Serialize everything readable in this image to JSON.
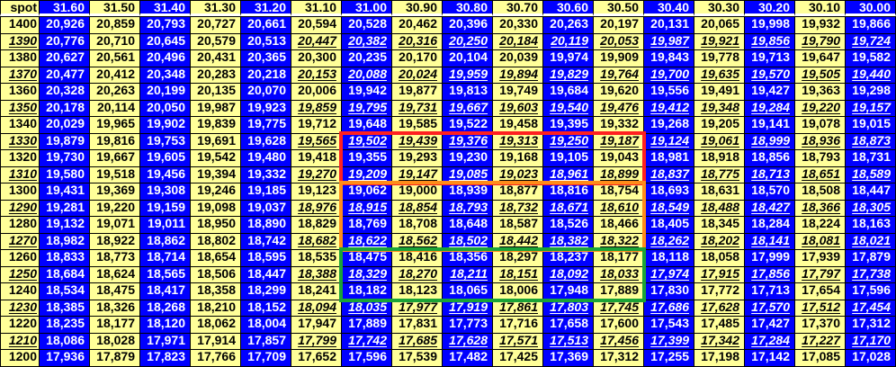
{
  "header": {
    "spot_label": "spot",
    "columns": [
      "31.60",
      "31.50",
      "31.40",
      "31.30",
      "31.20",
      "31.10",
      "31.00",
      "30.90",
      "30.80",
      "30.70",
      "30.60",
      "30.50",
      "30.40",
      "30.30",
      "30.20",
      "30.10",
      "30.00"
    ]
  },
  "colors": {
    "blue_column": "#0000ff",
    "yellow_column": "#ffff99",
    "highlight_red": "#ff2020",
    "highlight_orange": "#ff8c1a",
    "highlight_green": "#1aa337"
  },
  "highlights": [
    {
      "color": "red",
      "rows": [
        "1330",
        "1310"
      ],
      "columns": [
        "31.00",
        "30.50"
      ]
    },
    {
      "color": "orange",
      "rows": [
        "1300",
        "1270"
      ],
      "columns": [
        "31.00",
        "30.50"
      ]
    },
    {
      "color": "green",
      "rows": [
        "1260",
        "1240"
      ],
      "columns": [
        "31.00",
        "30.50"
      ]
    }
  ],
  "rows": [
    {
      "spot": "1400",
      "values": [
        "20,926",
        "20,859",
        "20,793",
        "20,727",
        "20,661",
        "20,594",
        "20,528",
        "20,462",
        "20,396",
        "20,330",
        "20,263",
        "20,197",
        "20,131",
        "20,065",
        "19,998",
        "19,932",
        "19,866"
      ]
    },
    {
      "spot": "1390",
      "values": [
        "20,776",
        "20,710",
        "20,645",
        "20,579",
        "20,513",
        "20,447",
        "20,382",
        "20,316",
        "20,250",
        "20,184",
        "20,119",
        "20,053",
        "19,987",
        "19,921",
        "19,856",
        "19,790",
        "19,724"
      ]
    },
    {
      "spot": "1380",
      "values": [
        "20,627",
        "20,561",
        "20,496",
        "20,431",
        "20,365",
        "20,300",
        "20,235",
        "20,170",
        "20,104",
        "20,039",
        "19,974",
        "19,909",
        "19,843",
        "19,778",
        "19,713",
        "19,647",
        "19,582"
      ]
    },
    {
      "spot": "1370",
      "values": [
        "20,477",
        "20,412",
        "20,348",
        "20,283",
        "20,218",
        "20,153",
        "20,088",
        "20,024",
        "19,959",
        "19,894",
        "19,829",
        "19,764",
        "19,700",
        "19,635",
        "19,570",
        "19,505",
        "19,440"
      ]
    },
    {
      "spot": "1360",
      "values": [
        "20,328",
        "20,263",
        "20,199",
        "20,135",
        "20,070",
        "20,006",
        "19,942",
        "19,877",
        "19,813",
        "19,749",
        "19,684",
        "19,620",
        "19,556",
        "19,491",
        "19,427",
        "19,363",
        "19,298"
      ]
    },
    {
      "spot": "1350",
      "values": [
        "20,178",
        "20,114",
        "20,050",
        "19,987",
        "19,923",
        "19,859",
        "19,795",
        "19,731",
        "19,667",
        "19,603",
        "19,540",
        "19,476",
        "19,412",
        "19,348",
        "19,284",
        "19,220",
        "19,157"
      ]
    },
    {
      "spot": "1340",
      "values": [
        "20,029",
        "19,965",
        "19,902",
        "19,839",
        "19,775",
        "19,712",
        "19,648",
        "19,585",
        "19,522",
        "19,458",
        "19,395",
        "19,332",
        "19,268",
        "19,205",
        "19,141",
        "19,078",
        "19,015"
      ]
    },
    {
      "spot": "1330",
      "values": [
        "19,879",
        "19,816",
        "19,753",
        "19,691",
        "19,628",
        "19,565",
        "19,502",
        "19,439",
        "19,376",
        "19,313",
        "19,250",
        "19,187",
        "19,124",
        "19,061",
        "18,999",
        "18,936",
        "18,873"
      ]
    },
    {
      "spot": "1320",
      "values": [
        "19,730",
        "19,667",
        "19,605",
        "19,542",
        "19,480",
        "19,418",
        "19,355",
        "19,293",
        "19,230",
        "19,168",
        "19,105",
        "19,043",
        "18,981",
        "18,918",
        "18,856",
        "18,793",
        "18,731"
      ]
    },
    {
      "spot": "1310",
      "values": [
        "19,580",
        "19,518",
        "19,456",
        "19,394",
        "19,332",
        "19,270",
        "19,209",
        "19,147",
        "19,085",
        "19,023",
        "18,961",
        "18,899",
        "18,837",
        "18,775",
        "18,713",
        "18,651",
        "18,589"
      ]
    },
    {
      "spot": "1300",
      "values": [
        "19,431",
        "19,369",
        "19,308",
        "19,246",
        "19,185",
        "19,123",
        "19,062",
        "19,000",
        "18,939",
        "18,877",
        "18,816",
        "18,754",
        "18,693",
        "18,631",
        "18,570",
        "18,508",
        "18,447"
      ]
    },
    {
      "spot": "1290",
      "values": [
        "19,281",
        "19,220",
        "19,159",
        "19,098",
        "19,037",
        "18,976",
        "18,915",
        "18,854",
        "18,793",
        "18,732",
        "18,671",
        "18,610",
        "18,549",
        "18,488",
        "18,427",
        "18,366",
        "18,305"
      ]
    },
    {
      "spot": "1280",
      "values": [
        "19,132",
        "19,071",
        "19,011",
        "18,950",
        "18,890",
        "18,829",
        "18,769",
        "18,708",
        "18,648",
        "18,587",
        "18,526",
        "18,466",
        "18,405",
        "18,345",
        "18,284",
        "18,224",
        "18,163"
      ]
    },
    {
      "spot": "1270",
      "values": [
        "18,982",
        "18,922",
        "18,862",
        "18,802",
        "18,742",
        "18,682",
        "18,622",
        "18,562",
        "18,502",
        "18,442",
        "18,382",
        "18,322",
        "18,262",
        "18,202",
        "18,141",
        "18,081",
        "18,021"
      ]
    },
    {
      "spot": "1260",
      "values": [
        "18,833",
        "18,773",
        "18,714",
        "18,654",
        "18,595",
        "18,535",
        "18,475",
        "18,416",
        "18,356",
        "18,297",
        "18,237",
        "18,177",
        "18,118",
        "18,058",
        "17,999",
        "17,939",
        "17,879"
      ]
    },
    {
      "spot": "1250",
      "values": [
        "18,684",
        "18,624",
        "18,565",
        "18,506",
        "18,447",
        "18,388",
        "18,329",
        "18,270",
        "18,211",
        "18,151",
        "18,092",
        "18,033",
        "17,974",
        "17,915",
        "17,856",
        "17,797",
        "17,738"
      ]
    },
    {
      "spot": "1240",
      "values": [
        "18,534",
        "18,475",
        "18,417",
        "18,358",
        "18,299",
        "18,241",
        "18,182",
        "18,123",
        "18,065",
        "18,006",
        "17,948",
        "17,889",
        "17,830",
        "17,772",
        "17,713",
        "17,654",
        "17,596"
      ]
    },
    {
      "spot": "1230",
      "values": [
        "18,385",
        "18,326",
        "18,268",
        "18,210",
        "18,152",
        "18,094",
        "18,035",
        "17,977",
        "17,919",
        "17,861",
        "17,803",
        "17,745",
        "17,686",
        "17,628",
        "17,570",
        "17,512",
        "17,454"
      ]
    },
    {
      "spot": "1220",
      "values": [
        "18,235",
        "18,177",
        "18,120",
        "18,062",
        "18,004",
        "17,947",
        "17,889",
        "17,831",
        "17,773",
        "17,716",
        "17,658",
        "17,600",
        "17,543",
        "17,485",
        "17,427",
        "17,370",
        "17,312"
      ]
    },
    {
      "spot": "1210",
      "values": [
        "18,086",
        "18,028",
        "17,971",
        "17,914",
        "17,857",
        "17,799",
        "17,742",
        "17,685",
        "17,628",
        "17,571",
        "17,513",
        "17,456",
        "17,399",
        "17,342",
        "17,284",
        "17,227",
        "17,170"
      ]
    },
    {
      "spot": "1200",
      "values": [
        "17,936",
        "17,879",
        "17,823",
        "17,766",
        "17,709",
        "17,652",
        "17,596",
        "17,539",
        "17,482",
        "17,425",
        "17,369",
        "17,312",
        "17,255",
        "17,198",
        "17,142",
        "17,085",
        "17,028"
      ]
    }
  ]
}
